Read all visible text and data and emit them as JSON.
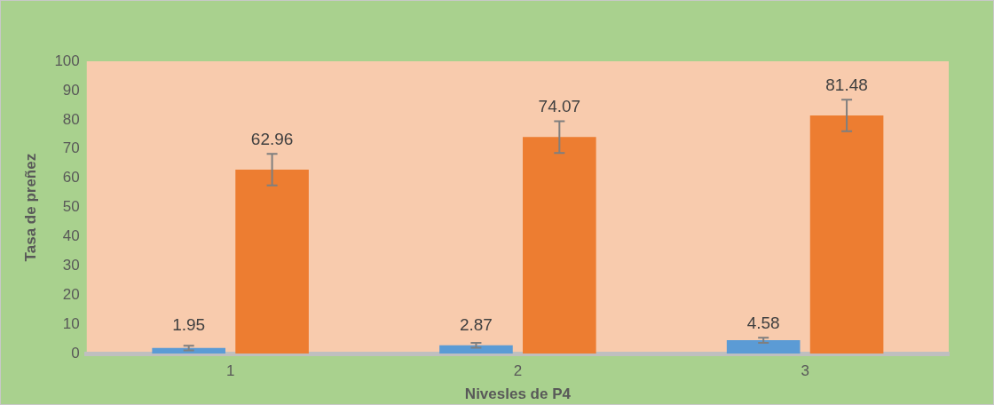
{
  "chart_data": {
    "type": "bar",
    "xlabel": "Nivesles de P4",
    "ylabel": "Tasa de preñez",
    "categories": [
      "1",
      "2",
      "3"
    ],
    "series": [
      {
        "color": "#5b9bd5",
        "values": [
          1.95,
          2.87,
          4.58
        ],
        "errors": [
          0.8,
          0.8,
          0.9
        ]
      },
      {
        "color": "#ed7d31",
        "values": [
          62.96,
          74.07,
          81.48
        ],
        "errors": [
          5.4,
          5.4,
          5.4
        ]
      }
    ],
    "ylim": [
      0,
      100
    ],
    "yticks": [
      0,
      10,
      20,
      30,
      40,
      50,
      60,
      70,
      80,
      90,
      100
    ],
    "grid": false,
    "legend": false,
    "data_labels": true
  }
}
